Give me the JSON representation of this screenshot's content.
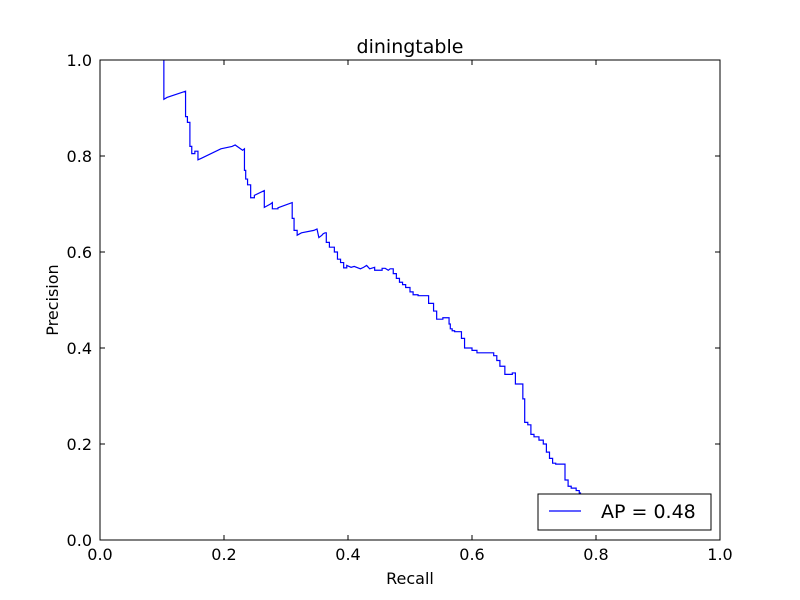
{
  "chart_data": {
    "type": "line",
    "title": "diningtable",
    "xlabel": "Recall",
    "ylabel": "Precision",
    "xlim": [
      0.0,
      1.0
    ],
    "ylim": [
      0.0,
      1.0
    ],
    "xticks": [
      "0.0",
      "0.2",
      "0.4",
      "0.6",
      "0.8",
      "1.0"
    ],
    "yticks": [
      "0.0",
      "0.2",
      "0.4",
      "0.6",
      "0.8",
      "1.0"
    ],
    "grid": false,
    "legend_position": "lower right",
    "series": [
      {
        "name": "AP = 0.48",
        "color": "#0000ff",
        "x": [
          0.103,
          0.103,
          0.108,
          0.138,
          0.138,
          0.141,
          0.141,
          0.145,
          0.145,
          0.148,
          0.148,
          0.153,
          0.153,
          0.158,
          0.158,
          0.163,
          0.195,
          0.213,
          0.218,
          0.23,
          0.233,
          0.233,
          0.235,
          0.235,
          0.238,
          0.238,
          0.243,
          0.243,
          0.249,
          0.249,
          0.265,
          0.265,
          0.275,
          0.278,
          0.278,
          0.287,
          0.287,
          0.293,
          0.31,
          0.31,
          0.313,
          0.313,
          0.318,
          0.318,
          0.325,
          0.345,
          0.35,
          0.353,
          0.358,
          0.36,
          0.363,
          0.365,
          0.365,
          0.37,
          0.37,
          0.378,
          0.378,
          0.383,
          0.383,
          0.388,
          0.388,
          0.393,
          0.393,
          0.398,
          0.398,
          0.405,
          0.41,
          0.42,
          0.425,
          0.43,
          0.435,
          0.443,
          0.443,
          0.455,
          0.455,
          0.46,
          0.465,
          0.468,
          0.473,
          0.473,
          0.478,
          0.478,
          0.483,
          0.483,
          0.488,
          0.488,
          0.493,
          0.493,
          0.5,
          0.5,
          0.505,
          0.505,
          0.513,
          0.513,
          0.53,
          0.53,
          0.538,
          0.538,
          0.543,
          0.543,
          0.548,
          0.548,
          0.553,
          0.553,
          0.563,
          0.563,
          0.565,
          0.565,
          0.568,
          0.568,
          0.572,
          0.572,
          0.583,
          0.583,
          0.588,
          0.588,
          0.6,
          0.6,
          0.608,
          0.608,
          0.635,
          0.635,
          0.64,
          0.64,
          0.645,
          0.645,
          0.653,
          0.653,
          0.665,
          0.665,
          0.67,
          0.67,
          0.682,
          0.682,
          0.685,
          0.685,
          0.69,
          0.69,
          0.695,
          0.695,
          0.7,
          0.7,
          0.708,
          0.708,
          0.715,
          0.715,
          0.72,
          0.72,
          0.725,
          0.725,
          0.73,
          0.73,
          0.735,
          0.735,
          0.75,
          0.75,
          0.755,
          0.755,
          0.76,
          0.76,
          0.768,
          0.768,
          0.773,
          0.773,
          0.775,
          0.775,
          0.782
        ],
        "y": [
          1.0,
          0.918,
          0.922,
          0.935,
          0.882,
          0.882,
          0.87,
          0.87,
          0.82,
          0.82,
          0.805,
          0.805,
          0.81,
          0.81,
          0.792,
          0.795,
          0.815,
          0.82,
          0.823,
          0.812,
          0.815,
          0.77,
          0.77,
          0.752,
          0.752,
          0.74,
          0.74,
          0.713,
          0.713,
          0.718,
          0.728,
          0.693,
          0.7,
          0.703,
          0.69,
          0.69,
          0.692,
          0.695,
          0.703,
          0.67,
          0.67,
          0.645,
          0.645,
          0.635,
          0.64,
          0.645,
          0.648,
          0.63,
          0.635,
          0.638,
          0.64,
          0.64,
          0.62,
          0.62,
          0.61,
          0.61,
          0.6,
          0.6,
          0.585,
          0.585,
          0.578,
          0.578,
          0.567,
          0.567,
          0.572,
          0.568,
          0.57,
          0.565,
          0.568,
          0.572,
          0.565,
          0.568,
          0.562,
          0.562,
          0.566,
          0.566,
          0.562,
          0.565,
          0.565,
          0.555,
          0.555,
          0.545,
          0.545,
          0.537,
          0.537,
          0.532,
          0.532,
          0.526,
          0.526,
          0.517,
          0.517,
          0.511,
          0.511,
          0.509,
          0.509,
          0.493,
          0.493,
          0.477,
          0.477,
          0.46,
          0.46,
          0.46,
          0.46,
          0.463,
          0.463,
          0.45,
          0.45,
          0.44,
          0.44,
          0.436,
          0.436,
          0.434,
          0.434,
          0.42,
          0.42,
          0.4,
          0.4,
          0.395,
          0.395,
          0.39,
          0.39,
          0.384,
          0.384,
          0.374,
          0.374,
          0.362,
          0.362,
          0.345,
          0.345,
          0.348,
          0.348,
          0.325,
          0.325,
          0.294,
          0.294,
          0.245,
          0.245,
          0.24,
          0.24,
          0.22,
          0.22,
          0.215,
          0.215,
          0.208,
          0.208,
          0.2,
          0.2,
          0.183,
          0.183,
          0.17,
          0.17,
          0.16,
          0.16,
          0.158,
          0.158,
          0.125,
          0.125,
          0.112,
          0.112,
          0.108,
          0.108,
          0.103,
          0.103,
          0.098,
          0.098,
          0.09,
          0.09
        ]
      }
    ]
  }
}
